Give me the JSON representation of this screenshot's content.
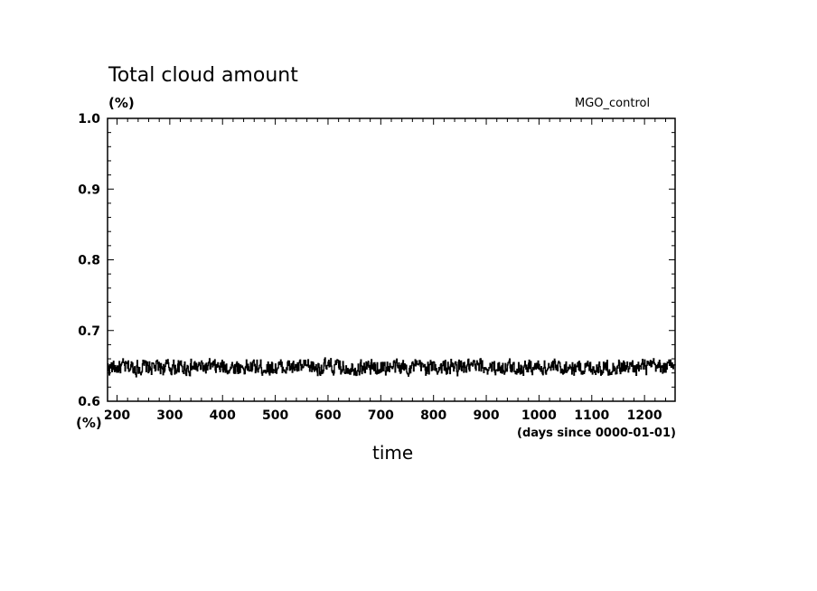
{
  "chart_data": {
    "type": "line",
    "title": "Total cloud amount",
    "ylabel_units": "(%)",
    "run_label": "MGO_control",
    "xlabel": "time",
    "xlabel_units": "(days since 0000-01-01)",
    "y_tick_units": "(%)",
    "xlim": [
      182,
      1258
    ],
    "ylim": [
      0.6,
      1.0
    ],
    "x_ticks": [
      200,
      300,
      400,
      500,
      600,
      700,
      800,
      900,
      1000,
      1100,
      1200
    ],
    "x_tick_labels": [
      "200",
      "300",
      "400",
      "500",
      "600",
      "700",
      "800",
      "900",
      "1000",
      "1100",
      "1200"
    ],
    "y_ticks": [
      0.6,
      0.7,
      0.8,
      0.9,
      1.0
    ],
    "y_tick_labels": [
      "0.6",
      "0.7",
      "0.8",
      "0.9",
      "1.0"
    ],
    "grid": false,
    "series": [
      {
        "x_start": 182,
        "x_step": 1,
        "mean": 0.648,
        "range": [
          0.625,
          0.668
        ],
        "color": "#000000",
        "values": []
      }
    ]
  }
}
